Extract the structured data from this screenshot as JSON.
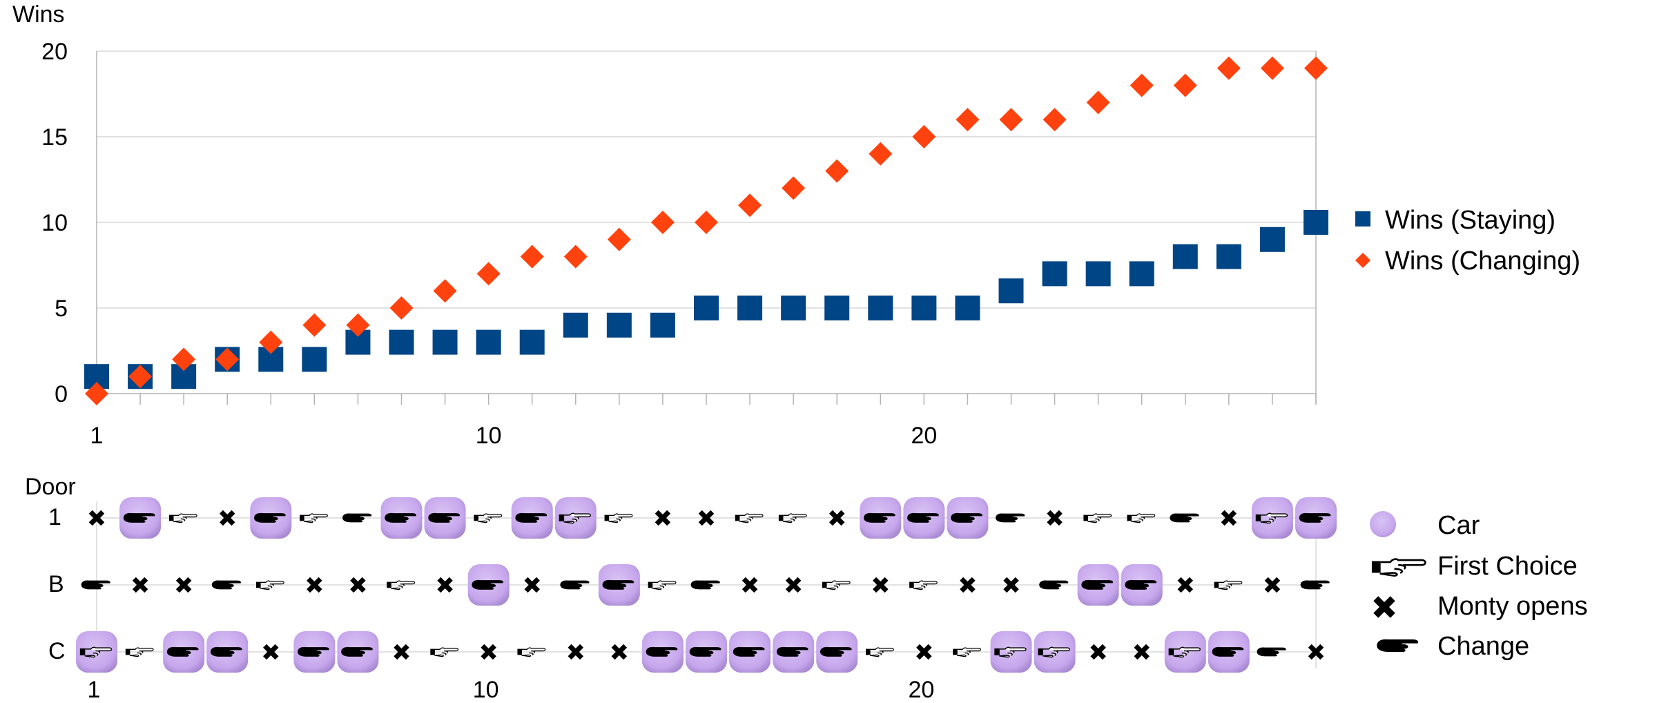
{
  "chart_data": [
    {
      "type": "scatter",
      "title": "",
      "xlabel": "",
      "ylabel": "Wins",
      "xlim": [
        1,
        29
      ],
      "ylim": [
        0,
        20
      ],
      "y_ticks": [
        0,
        5,
        10,
        15,
        20
      ],
      "x_ticks": [
        1,
        10,
        20
      ],
      "grid": true,
      "legend": "right",
      "series": [
        {
          "name": "Wins (Staying)",
          "marker": "square",
          "color": "#004586",
          "values": [
            1,
            1,
            1,
            2,
            2,
            2,
            3,
            3,
            3,
            3,
            3,
            4,
            4,
            4,
            5,
            5,
            5,
            5,
            5,
            5,
            5,
            6,
            7,
            7,
            7,
            8,
            8,
            9,
            10
          ]
        },
        {
          "name": "Wins (Changing)",
          "marker": "diamond",
          "color": "#ff420e",
          "values": [
            0,
            1,
            2,
            2,
            3,
            4,
            4,
            5,
            6,
            7,
            8,
            8,
            9,
            10,
            10,
            11,
            12,
            13,
            14,
            15,
            16,
            16,
            16,
            17,
            18,
            18,
            19,
            19,
            19
          ]
        }
      ]
    },
    {
      "type": "scatter",
      "title": "",
      "ylabel": "Door",
      "x_ticks": [
        1,
        10,
        20
      ],
      "rows": [
        "1",
        "B",
        "C"
      ],
      "car_color": "#c6a6ec",
      "legend": "right",
      "legend_items": [
        {
          "key": "car",
          "label": "Car"
        },
        {
          "key": "first",
          "label": "First Choice"
        },
        {
          "key": "monty",
          "label": "Monty opens"
        },
        {
          "key": "change",
          "label": "Change"
        }
      ],
      "doors": {
        "1": [
          "X",
          "CC",
          "F",
          "X",
          "CC",
          "F",
          "C",
          "CC",
          "CC",
          "F",
          "CC",
          "CF",
          "F",
          "X",
          "X",
          "F",
          "F",
          "X",
          "CC",
          "CC",
          "CC",
          "C",
          "X",
          "F",
          "F",
          "C",
          "X",
          "CF",
          "CC"
        ],
        "B": [
          "C",
          "X",
          "X",
          "C",
          "F",
          "X",
          "X",
          "F",
          "X",
          "CC",
          "X",
          "C",
          "CC",
          "F",
          "C",
          "X",
          "X",
          "F",
          "X",
          "F",
          "X",
          "X",
          "C",
          "CC",
          "CC",
          "X",
          "F",
          "X",
          "C"
        ],
        "C": [
          "CF",
          "F",
          "CC",
          "CC",
          "X",
          "CC",
          "CC",
          "X",
          "F",
          "X",
          "F",
          "X",
          "X",
          "CC",
          "CC",
          "CC",
          "CC",
          "CC",
          "F",
          "X",
          "F",
          "CF",
          "CF",
          "X",
          "X",
          "CF",
          "CC",
          "C",
          "X"
        ]
      }
    }
  ],
  "icons": {
    "car": "circle-badge",
    "first": "pointing-hand-outline-icon",
    "monty": "heavy-x-icon",
    "change": "pointing-hand-black-icon"
  }
}
